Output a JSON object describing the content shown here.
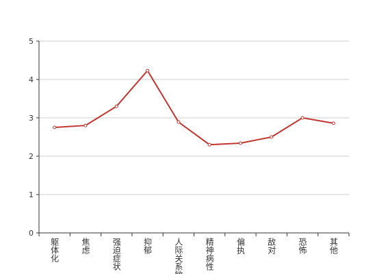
{
  "chart_data": {
    "type": "line",
    "categories": [
      "躯体化",
      "焦虑",
      "强迫症状",
      "抑郁",
      "人际关系敏感",
      "精神病性",
      "偏执",
      "敌对",
      "恐怖",
      "其他"
    ],
    "series": [
      {
        "color": "#c23531",
        "values": [
          2.75,
          2.8,
          3.3,
          4.23,
          2.89,
          2.3,
          2.34,
          2.5,
          3.0,
          2.86
        ]
      }
    ],
    "ylim": [
      0,
      5
    ],
    "yticks": [
      0,
      1,
      2,
      3,
      4,
      5
    ],
    "grid": true
  }
}
